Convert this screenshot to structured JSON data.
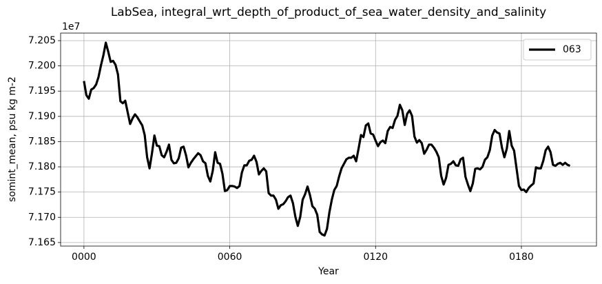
{
  "chart_data": {
    "type": "line",
    "title": "LabSea, integral_wrt_depth_of_product_of_sea_water_density_and_salinity",
    "xlabel": "Year",
    "ylabel": "somint_mean, psu kg m-2",
    "y_offset_label": "1e7",
    "x": [
      0,
      1,
      2,
      3,
      4,
      5,
      6,
      7,
      8,
      9,
      10,
      11,
      12,
      13,
      14,
      15,
      16,
      17,
      18,
      19,
      20,
      21,
      22,
      23,
      24,
      25,
      26,
      27,
      28,
      29,
      30,
      31,
      32,
      33,
      34,
      35,
      36,
      37,
      38,
      39,
      40,
      41,
      42,
      43,
      44,
      45,
      46,
      47,
      48,
      49,
      50,
      51,
      52,
      53,
      54,
      55,
      56,
      57,
      58,
      59,
      60,
      61,
      62,
      63,
      64,
      65,
      66,
      67,
      68,
      69,
      70,
      71,
      72,
      73,
      74,
      75,
      76,
      77,
      78,
      79,
      80,
      81,
      82,
      83,
      84,
      85,
      86,
      87,
      88,
      89,
      90,
      91,
      92,
      93,
      94,
      95,
      96,
      97,
      98,
      99,
      100,
      101,
      102,
      103,
      104,
      105,
      106,
      107,
      108,
      109,
      110,
      111,
      112,
      113,
      114,
      115,
      116,
      117,
      118,
      119,
      120,
      121,
      122,
      123,
      124,
      125,
      126,
      127,
      128,
      129,
      130,
      131,
      132,
      133,
      134,
      135,
      136,
      137,
      138,
      139,
      140,
      141,
      142,
      143,
      144,
      145,
      146,
      147,
      148,
      149,
      150,
      151,
      152,
      153,
      154,
      155,
      156,
      157,
      158,
      159,
      160,
      161,
      162,
      163,
      164,
      165,
      166,
      167,
      168,
      169,
      170,
      171,
      172,
      173,
      174,
      175,
      176,
      177,
      178,
      179,
      180,
      181,
      182,
      183,
      184,
      185,
      186,
      187,
      188,
      189,
      190,
      191,
      192,
      193,
      194,
      195,
      196,
      197,
      198,
      199,
      200
    ],
    "series": [
      {
        "name": "063",
        "color": "#000000",
        "values": [
          7.197,
          7.1942,
          7.1935,
          7.1953,
          7.1956,
          7.1963,
          7.1978,
          7.2001,
          7.2021,
          7.2046,
          7.2028,
          7.2008,
          7.201,
          7.2002,
          7.1983,
          7.193,
          7.1926,
          7.1931,
          7.1908,
          7.1885,
          7.1896,
          7.1904,
          7.1898,
          7.189,
          7.1882,
          7.1863,
          7.1819,
          7.1797,
          7.1827,
          7.1862,
          7.1842,
          7.1841,
          7.1823,
          7.1819,
          7.183,
          7.1844,
          7.1814,
          7.1807,
          7.1808,
          7.1817,
          7.1838,
          7.184,
          7.1823,
          7.1799,
          7.1808,
          7.1815,
          7.1821,
          7.1827,
          7.1823,
          7.1811,
          7.1807,
          7.1782,
          7.1771,
          7.1792,
          7.1829,
          7.1808,
          7.1806,
          7.1786,
          7.1752,
          7.1754,
          7.1762,
          7.1762,
          7.1761,
          7.1758,
          7.1762,
          7.1789,
          7.1803,
          7.1803,
          7.1812,
          7.1814,
          7.1822,
          7.181,
          7.1785,
          7.1792,
          7.1797,
          7.1791,
          7.1748,
          7.1743,
          7.1743,
          7.1735,
          7.1717,
          7.1724,
          7.1726,
          7.1732,
          7.174,
          7.1743,
          7.1728,
          7.1701,
          7.1683,
          7.1701,
          7.1735,
          7.1746,
          7.1761,
          7.1744,
          7.1722,
          7.1717,
          7.1705,
          7.1671,
          7.1666,
          7.1664,
          7.1677,
          7.171,
          7.1735,
          7.1754,
          7.1762,
          7.1781,
          7.1797,
          7.1806,
          7.1815,
          7.1818,
          7.1818,
          7.1822,
          7.1811,
          7.1836,
          7.1863,
          7.1859,
          7.1882,
          7.1886,
          7.1866,
          7.1864,
          7.1852,
          7.1841,
          7.1849,
          7.1852,
          7.1847,
          7.1871,
          7.1879,
          7.1877,
          7.1893,
          7.1901,
          7.1923,
          7.1912,
          7.1883,
          7.1905,
          7.1912,
          7.1901,
          7.186,
          7.1848,
          7.1853,
          7.1847,
          7.1826,
          7.1834,
          7.1844,
          7.1844,
          7.1838,
          7.183,
          7.1819,
          7.1782,
          7.1765,
          7.1778,
          7.1804,
          7.1806,
          7.1811,
          7.1803,
          7.1802,
          7.1815,
          7.1818,
          7.178,
          7.1765,
          7.1752,
          7.1767,
          7.1796,
          7.1797,
          7.1795,
          7.18,
          7.1814,
          7.1819,
          7.1833,
          7.1862,
          7.1873,
          7.1868,
          7.1866,
          7.1838,
          7.1819,
          7.1836,
          7.1871,
          7.1842,
          7.1832,
          7.1797,
          7.1762,
          7.1754,
          7.1755,
          7.175,
          7.1758,
          7.1763,
          7.1767,
          7.1799,
          7.1797,
          7.1797,
          7.1812,
          7.1833,
          7.184,
          7.1829,
          7.1804,
          7.1802,
          7.1806,
          7.1808,
          7.1804,
          7.1808,
          7.1804,
          7.1802
        ]
      }
    ],
    "xlim": [
      -9.6,
      210.9
    ],
    "ylim": [
      7.1643,
      7.2065
    ],
    "xticks": [
      {
        "value": 0,
        "label": "0000"
      },
      {
        "value": 60,
        "label": "0060"
      },
      {
        "value": 120,
        "label": "0120"
      },
      {
        "value": 180,
        "label": "0180"
      }
    ],
    "yticks": [
      {
        "value": 7.165,
        "label": "7.165"
      },
      {
        "value": 7.17,
        "label": "7.170"
      },
      {
        "value": 7.175,
        "label": "7.175"
      },
      {
        "value": 7.18,
        "label": "7.180"
      },
      {
        "value": 7.185,
        "label": "7.185"
      },
      {
        "value": 7.19,
        "label": "7.190"
      },
      {
        "value": 7.195,
        "label": "7.195"
      },
      {
        "value": 7.2,
        "label": "7.200"
      },
      {
        "value": 7.205,
        "label": "7.205"
      }
    ],
    "grid": true,
    "legend": "upper right"
  }
}
